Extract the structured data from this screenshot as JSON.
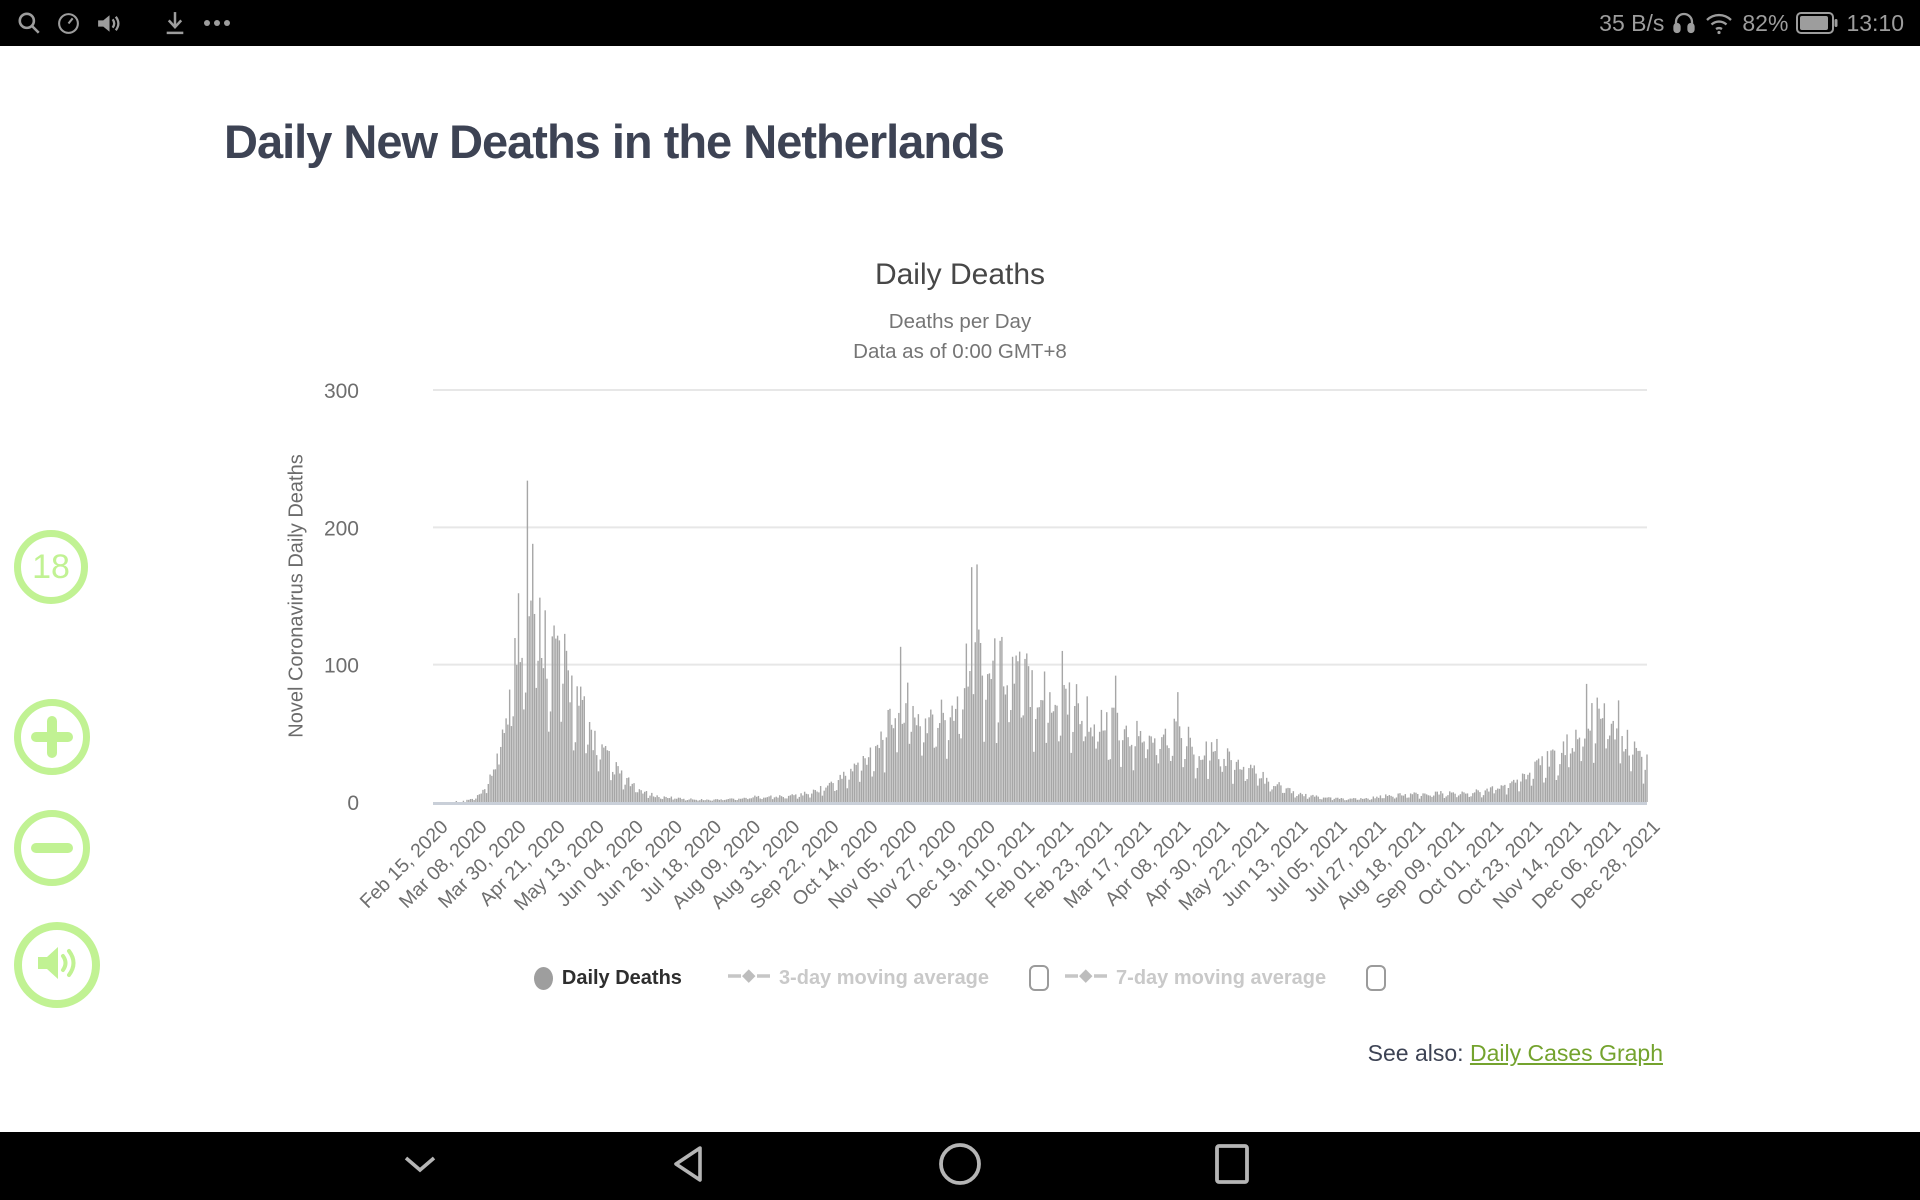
{
  "status_bar": {
    "left_icons": [
      "search-icon",
      "clock-icon",
      "volume-icon",
      "download-icon",
      "more-icon"
    ],
    "right_icons": [
      "headset-icon",
      "wifi-icon",
      "battery-icon"
    ],
    "net_speed": "35 B/s",
    "battery_percent": "82%",
    "time": "13:10"
  },
  "page": {
    "title": "Daily New Deaths in the Netherlands",
    "see_also_label": "See also: ",
    "see_also_link": "Daily Cases Graph"
  },
  "side_controls": {
    "badge": "18",
    "buttons": [
      "zoom-in",
      "zoom-out",
      "speaker"
    ]
  },
  "nav_bar": {
    "buttons": [
      "hide-nav",
      "back",
      "home",
      "recents"
    ]
  },
  "chart_data": {
    "type": "bar",
    "title": "Daily Deaths",
    "subtitle1": "Deaths per Day",
    "subtitle2": "Data as of 0:00 GMT+8",
    "ylabel": "Novel Coronavirus Daily Deaths",
    "ylim": [
      0,
      300
    ],
    "yticks": [
      0,
      100,
      200,
      300
    ],
    "x_start_date": "2020-02-15",
    "x_end_date": "2021-12-28",
    "xtick_interval_days": 22,
    "xtick_labels": [
      "Feb 15, 2020",
      "Mar 08, 2020",
      "Mar 30, 2020",
      "Apr 21, 2020",
      "May 13, 2020",
      "Jun 04, 2020",
      "Jun 26, 2020",
      "Jul 18, 2020",
      "Aug 09, 2020",
      "Aug 31, 2020",
      "Sep 22, 2020",
      "Oct 14, 2020",
      "Nov 05, 2020",
      "Nov 27, 2020",
      "Dec 19, 2020",
      "Jan 10, 2021",
      "Feb 01, 2021",
      "Feb 23, 2021",
      "Mar 17, 2021",
      "Apr 08, 2021",
      "Apr 30, 2021",
      "May 22, 2021",
      "Jun 13, 2021",
      "Jul 05, 2021",
      "Jul 27, 2021",
      "Aug 18, 2021",
      "Sep 09, 2021",
      "Oct 01, 2021",
      "Oct 23, 2021",
      "Nov 14, 2021",
      "Dec 06, 2021",
      "Dec 28, 2021"
    ],
    "bar_color": "#a6a6a6",
    "colors": {
      "grid": "#e7e7e7",
      "axis_line": "#c9cfd8",
      "tick_text": "#6e6e6e",
      "title_text": "#474747"
    },
    "legend": [
      {
        "label": "Daily Deaths",
        "state": "active"
      },
      {
        "label": "3-day moving average",
        "state": "inactive",
        "checkbox_checked": false
      },
      {
        "label": "7-day moving average",
        "state": "inactive",
        "checkbox_checked": false
      }
    ],
    "series": [
      {
        "name": "Daily Deaths",
        "sampling": "weekly envelope, values estimated from gridlines",
        "points_format": [
          "date",
          "approx_deaths"
        ],
        "points": [
          [
            "2020-02-15",
            0
          ],
          [
            "2020-03-01",
            1
          ],
          [
            "2020-03-08",
            3
          ],
          [
            "2020-03-14",
            10
          ],
          [
            "2020-03-20",
            35
          ],
          [
            "2020-03-26",
            80
          ],
          [
            "2020-04-01",
            140
          ],
          [
            "2020-04-05",
            170
          ],
          [
            "2020-04-09",
            175
          ],
          [
            "2020-04-14",
            160
          ],
          [
            "2020-04-18",
            148
          ],
          [
            "2020-04-25",
            138
          ],
          [
            "2020-05-02",
            105
          ],
          [
            "2020-05-09",
            80
          ],
          [
            "2020-05-16",
            52
          ],
          [
            "2020-05-23",
            38
          ],
          [
            "2020-05-30",
            24
          ],
          [
            "2020-06-06",
            14
          ],
          [
            "2020-06-13",
            8
          ],
          [
            "2020-06-20",
            5
          ],
          [
            "2020-07-04",
            3
          ],
          [
            "2020-07-18",
            2
          ],
          [
            "2020-08-01",
            3
          ],
          [
            "2020-08-15",
            5
          ],
          [
            "2020-08-29",
            5
          ],
          [
            "2020-09-12",
            8
          ],
          [
            "2020-09-22",
            14
          ],
          [
            "2020-09-29",
            20
          ],
          [
            "2020-10-06",
            28
          ],
          [
            "2020-10-13",
            38
          ],
          [
            "2020-10-20",
            52
          ],
          [
            "2020-10-27",
            68
          ],
          [
            "2020-11-03",
            95
          ],
          [
            "2020-11-10",
            82
          ],
          [
            "2020-11-17",
            74
          ],
          [
            "2020-11-24",
            76
          ],
          [
            "2020-12-01",
            85
          ],
          [
            "2020-12-08",
            110
          ],
          [
            "2020-12-13",
            138
          ],
          [
            "2020-12-16",
            142
          ],
          [
            "2020-12-19",
            130
          ],
          [
            "2020-12-24",
            120
          ],
          [
            "2020-12-31",
            125
          ],
          [
            "2021-01-07",
            120
          ],
          [
            "2021-01-14",
            113
          ],
          [
            "2021-01-21",
            104
          ],
          [
            "2021-01-28",
            95
          ],
          [
            "2021-02-04",
            100
          ],
          [
            "2021-02-11",
            90
          ],
          [
            "2021-02-18",
            78
          ],
          [
            "2021-02-25",
            68
          ],
          [
            "2021-03-04",
            70
          ],
          [
            "2021-03-11",
            58
          ],
          [
            "2021-03-18",
            66
          ],
          [
            "2021-03-25",
            55
          ],
          [
            "2021-04-01",
            58
          ],
          [
            "2021-04-08",
            66
          ],
          [
            "2021-04-15",
            54
          ],
          [
            "2021-04-22",
            48
          ],
          [
            "2021-04-29",
            52
          ],
          [
            "2021-05-06",
            42
          ],
          [
            "2021-05-13",
            33
          ],
          [
            "2021-05-20",
            28
          ],
          [
            "2021-05-27",
            22
          ],
          [
            "2021-06-03",
            16
          ],
          [
            "2021-06-10",
            11
          ],
          [
            "2021-06-17",
            7
          ],
          [
            "2021-06-24",
            5
          ],
          [
            "2021-07-08",
            3
          ],
          [
            "2021-07-22",
            3
          ],
          [
            "2021-08-05",
            6
          ],
          [
            "2021-08-19",
            7
          ],
          [
            "2021-09-02",
            8
          ],
          [
            "2021-09-16",
            8
          ],
          [
            "2021-09-30",
            11
          ],
          [
            "2021-10-07",
            14
          ],
          [
            "2021-10-14",
            18
          ],
          [
            "2021-10-21",
            24
          ],
          [
            "2021-10-28",
            32
          ],
          [
            "2021-11-04",
            40
          ],
          [
            "2021-11-11",
            48
          ],
          [
            "2021-11-18",
            58
          ],
          [
            "2021-11-25",
            70
          ],
          [
            "2021-11-30",
            78
          ],
          [
            "2021-12-04",
            76
          ],
          [
            "2021-12-08",
            64
          ],
          [
            "2021-12-12",
            60
          ],
          [
            "2021-12-16",
            55
          ],
          [
            "2021-12-20",
            50
          ],
          [
            "2021-12-24",
            42
          ],
          [
            "2021-12-28",
            38
          ]
        ]
      }
    ],
    "spikes": [
      [
        "2020-04-02",
        152
      ],
      [
        "2020-04-07",
        234
      ],
      [
        "2020-04-10",
        188
      ],
      [
        "2020-11-03",
        113
      ],
      [
        "2020-12-13",
        171
      ],
      [
        "2020-12-16",
        173
      ],
      [
        "2021-02-02",
        110
      ],
      [
        "2021-03-04",
        92
      ],
      [
        "2021-04-08",
        80
      ],
      [
        "2021-11-24",
        86
      ],
      [
        "2021-12-12",
        74
      ]
    ]
  }
}
